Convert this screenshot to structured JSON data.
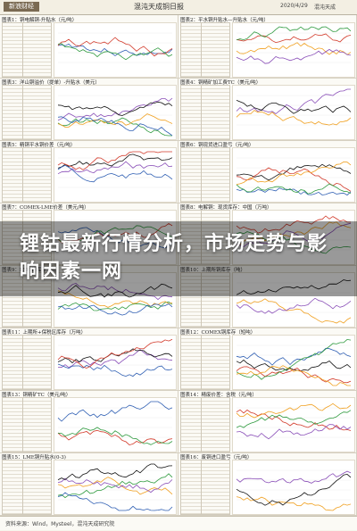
{
  "header": {
    "logo": "新浪财经",
    "title": "混沌天成铜日报",
    "date": "2020/4/29",
    "right": "混沌天成"
  },
  "panels": [
    {
      "title": "图表1：铜电解铜-升贴水（元/吨）"
    },
    {
      "title": "图表2：平水铜升贴水—升贴水（元/吨）"
    },
    {
      "title": "图表3：洋山铜溢价（提单）-升贴水（美元）"
    },
    {
      "title": "图表4：铜精矿加工费TC（美元/吨）"
    },
    {
      "title": "图表5：精铜平水铜价差（元/吨）"
    },
    {
      "title": "图表6：铜现货进口盈亏（元/吨）"
    },
    {
      "title": "图表7：COMEX-LME价差（美元/吨）"
    },
    {
      "title": "图表8：电解铜：现货库存：中国（万吨）"
    },
    {
      "title": "图表9：LME铜库存（吨）"
    },
    {
      "title": "图表10：上期所铜库存（吨）"
    },
    {
      "title": "图表11：上期所+保税区库存（万吨）"
    },
    {
      "title": "图表12：COMEX铜库存（短吨）"
    },
    {
      "title": "图表13：铜精矿TC（美元/吨）"
    },
    {
      "title": "图表14：精废价差：含税（元/吨）"
    },
    {
      "title": "图表15：LME铜升贴水(0-3)"
    },
    {
      "title": "图表16：废铜进口盈亏（元/吨）"
    }
  ],
  "overlay": {
    "headline": "锂钴最新行情分析，市场走势与影响因素一网"
  },
  "footer": {
    "source": "资料来源：Wind，Mysteel，混沌天成研究院"
  },
  "colors": {
    "series": [
      "#2f5fb3",
      "#d23a2a",
      "#2e9a3e",
      "#f0a020",
      "#8a4fb8",
      "#111111"
    ]
  }
}
